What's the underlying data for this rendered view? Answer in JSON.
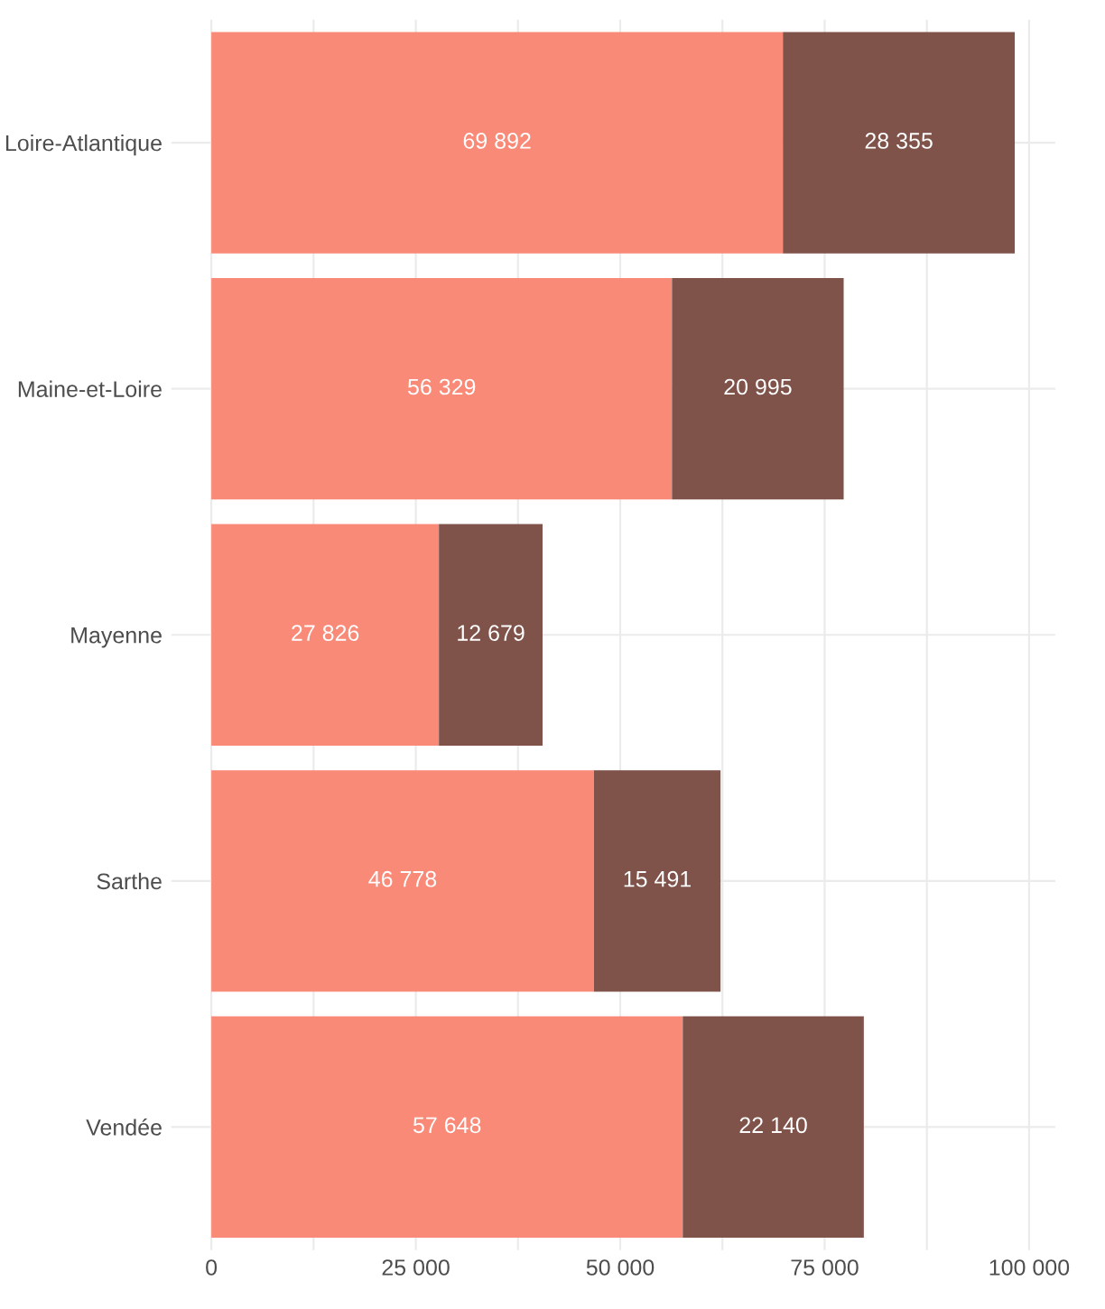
{
  "chart_data": {
    "type": "bar",
    "orientation": "horizontal",
    "stacked": true,
    "categories": [
      "Loire-Atlantique",
      "Maine-et-Loire",
      "Mayenne",
      "Sarthe",
      "Vendée"
    ],
    "series": [
      {
        "color": "#fa8a78",
        "values": [
          69892,
          56329,
          27826,
          46778,
          57648
        ],
        "value_labels": [
          "69 892",
          "56 329",
          "27 826",
          "46 778",
          "57 648"
        ]
      },
      {
        "color": "#7f534a",
        "values": [
          28355,
          20995,
          12679,
          15491,
          22140
        ],
        "value_labels": [
          "28 355",
          "20 995",
          "12 679",
          "15 491",
          "22 140"
        ]
      }
    ],
    "xlim": [
      -4900,
      103200
    ],
    "xticks": [
      0,
      {
        "value": 12500,
        "label": null
      },
      {
        "value": 25000,
        "label": "25 000"
      },
      {
        "value": 37500,
        "label": null
      },
      {
        "value": 50000,
        "label": "50 000"
      },
      {
        "value": 62500,
        "label": null
      },
      {
        "value": 75000,
        "label": "75 000"
      },
      {
        "value": 87500,
        "label": null
      },
      {
        "value": 100000,
        "label": "100 000"
      }
    ],
    "grid": true
  }
}
